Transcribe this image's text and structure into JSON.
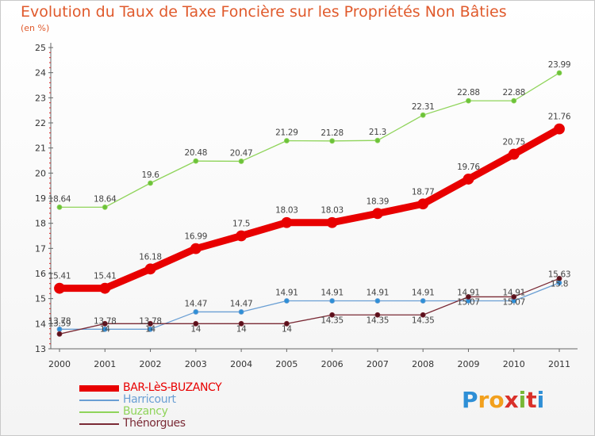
{
  "title": "Evolution du Taux de Taxe Foncière sur les Propriétés Non Bâties",
  "subtitle": "(en %)",
  "logo": {
    "letters": [
      "P",
      "r",
      "o",
      "x",
      "i",
      "t",
      "i"
    ],
    "colors": [
      "#2e8fd6",
      "#f2a01d",
      "#f2a01d",
      "#d9302a",
      "#78b737",
      "#d9302a",
      "#2e8fd6"
    ]
  },
  "chart_data": {
    "type": "line",
    "title": "Evolution du Taux de Taxe Foncière sur les Propriétés Non Bâties",
    "ylabel": "(en %)",
    "xlabel": "",
    "ylim": [
      13,
      25
    ],
    "x": [
      "2000",
      "2001",
      "2002",
      "2003",
      "2004",
      "2005",
      "2006",
      "2007",
      "2008",
      "2009",
      "2010",
      "2011"
    ],
    "yticks": [
      "13",
      "14",
      "15",
      "16",
      "17",
      "18",
      "19",
      "20",
      "21",
      "22",
      "23",
      "24",
      "25"
    ],
    "series": [
      {
        "name": "BAR-LèS-BUZANCY",
        "color": "#e80000",
        "values": [
          15.41,
          15.41,
          16.18,
          16.99,
          17.5,
          18.03,
          18.03,
          18.39,
          18.77,
          19.76,
          20.75,
          21.76
        ],
        "labels": [
          "15.41",
          "15.41",
          "16.18",
          "16.99",
          "17.5",
          "18.03",
          "18.03",
          "18.39",
          "18.77",
          "19.76",
          "20.75",
          "21.76"
        ]
      },
      {
        "name": "Harricourt",
        "color": "#6a9fd4",
        "values": [
          13.78,
          13.78,
          13.78,
          14.47,
          14.47,
          14.91,
          14.91,
          14.91,
          14.91,
          14.91,
          14.91,
          15.63
        ],
        "labels": [
          "13.78",
          "13.78",
          "13.78",
          "14.47",
          "14.47",
          "14.91",
          "14.91",
          "14.91",
          "14.91",
          "14.91",
          "14.91",
          "15.63"
        ]
      },
      {
        "name": "Buzancy",
        "color": "#8fd45a",
        "values": [
          18.64,
          18.64,
          19.6,
          20.48,
          20.47,
          21.29,
          21.28,
          21.3,
          22.31,
          22.88,
          22.88,
          23.99
        ],
        "labels": [
          "18.64",
          "18.64",
          "19.6",
          "20.48",
          "20.47",
          "21.29",
          "21.28",
          "21.3",
          "22.31",
          "22.88",
          "22.88",
          "23.99"
        ]
      },
      {
        "name": "Thénorgues",
        "color": "#7a2a35",
        "values": [
          13.59,
          14,
          14,
          14,
          14,
          14,
          14.35,
          14.35,
          14.35,
          15.07,
          15.07,
          15.8
        ],
        "labels": [
          "13.59",
          "14",
          "14",
          "14",
          "14",
          "14",
          "14.35",
          "14.35",
          "14.35",
          "15.07",
          "15.07",
          "15.8"
        ]
      }
    ],
    "legend": "bottom-left"
  }
}
